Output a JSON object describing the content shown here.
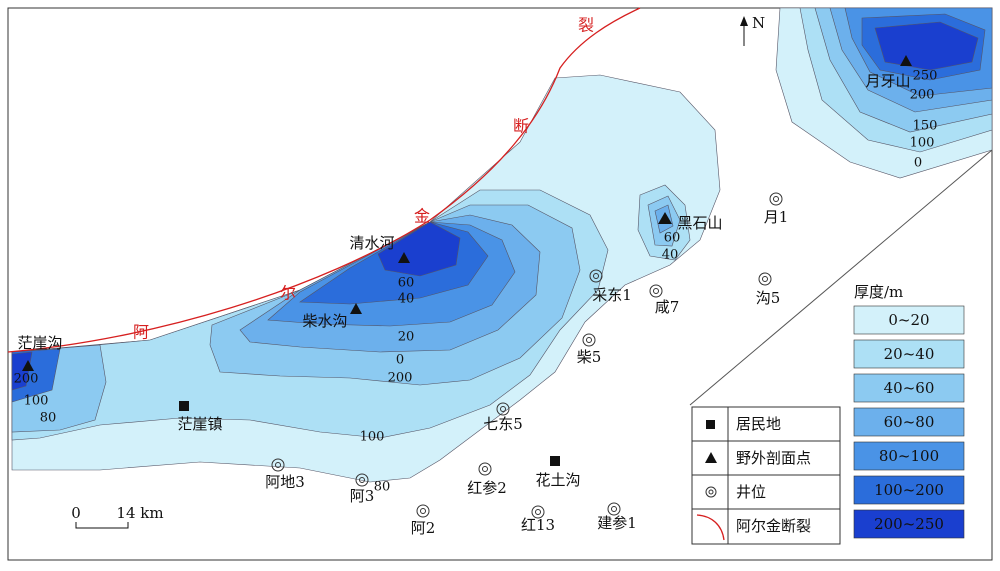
{
  "map": {
    "north": "N",
    "fault_chars": [
      "阿",
      "尔",
      "金",
      "断",
      "裂"
    ],
    "places": [
      "清水河",
      "柴水沟",
      "茫崖沟",
      "月牙山",
      "黑石山",
      "茫崖镇",
      "花土沟"
    ],
    "wells": [
      "采东1",
      "咸7",
      "柴5",
      "七东5",
      "阿地3",
      "阿3",
      "阿2",
      "红参2",
      "红13",
      "建参1",
      "月1",
      "沟5"
    ],
    "contour_labels": [
      "200",
      "100",
      "80",
      "60",
      "40",
      "20",
      "0",
      "200",
      "100",
      "80",
      "60",
      "40",
      "250",
      "200",
      "150",
      "100",
      "0"
    ],
    "scale": {
      "start": "0",
      "end": "14 km"
    },
    "symbol_legend": [
      "居民地",
      "野外剖面点",
      "井位",
      "阿尔金断裂"
    ],
    "legend": {
      "title": "厚度/m",
      "items": [
        {
          "label": "0~20",
          "color": "#d3f1fa"
        },
        {
          "label": "20~40",
          "color": "#ade0f5"
        },
        {
          "label": "40~60",
          "color": "#8ccaf1"
        },
        {
          "label": "60~80",
          "color": "#6cb0ec"
        },
        {
          "label": "80~100",
          "color": "#4a93e6"
        },
        {
          "label": "100~200",
          "color": "#2b6ddb"
        },
        {
          "label": "200~250",
          "color": "#1a3fcf"
        }
      ]
    }
  }
}
